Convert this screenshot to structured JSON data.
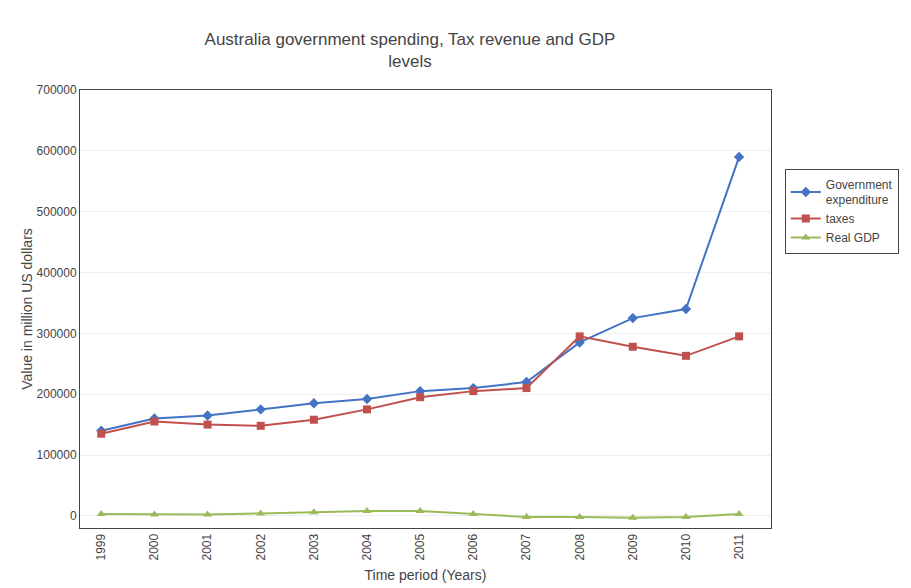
{
  "chart_data": {
    "type": "line",
    "title": "Australia government spending, Tax revenue and GDP\nlevels",
    "xlabel": "Time period (Years)",
    "ylabel": "Value in million US dollars",
    "x": [
      1999,
      2000,
      2001,
      2002,
      2003,
      2004,
      2005,
      2006,
      2007,
      2008,
      2009,
      2010,
      2011
    ],
    "series": [
      {
        "name": "Government\nexpenditure",
        "color": "#4472C4",
        "marker": "diamond",
        "values": [
          140000,
          160000,
          165000,
          175000,
          185000,
          192000,
          205000,
          210000,
          220000,
          285000,
          325000,
          340000,
          590000
        ]
      },
      {
        "name": "taxes",
        "color": "#C0504D",
        "marker": "square",
        "values": [
          135000,
          155000,
          150000,
          148000,
          158000,
          175000,
          195000,
          205000,
          210000,
          295000,
          278000,
          263000,
          295000
        ]
      },
      {
        "name": "Real GDP",
        "color": "#9BBB59",
        "marker": "triangle-up",
        "values": [
          3000,
          2000,
          2000,
          4000,
          6000,
          8000,
          8000,
          3000,
          -2000,
          -2000,
          -3000,
          -2000,
          3000
        ]
      }
    ],
    "xlim": [
      1998.6,
      2011.6
    ],
    "xticks": [
      1999,
      2000,
      2001,
      2002,
      2003,
      2004,
      2005,
      2006,
      2007,
      2008,
      2009,
      2010,
      2011
    ],
    "ylim": [
      -20000,
      700000
    ],
    "yticks": [
      0,
      100000,
      200000,
      300000,
      400000,
      500000,
      600000,
      700000
    ],
    "grid": true,
    "legend": "right"
  }
}
